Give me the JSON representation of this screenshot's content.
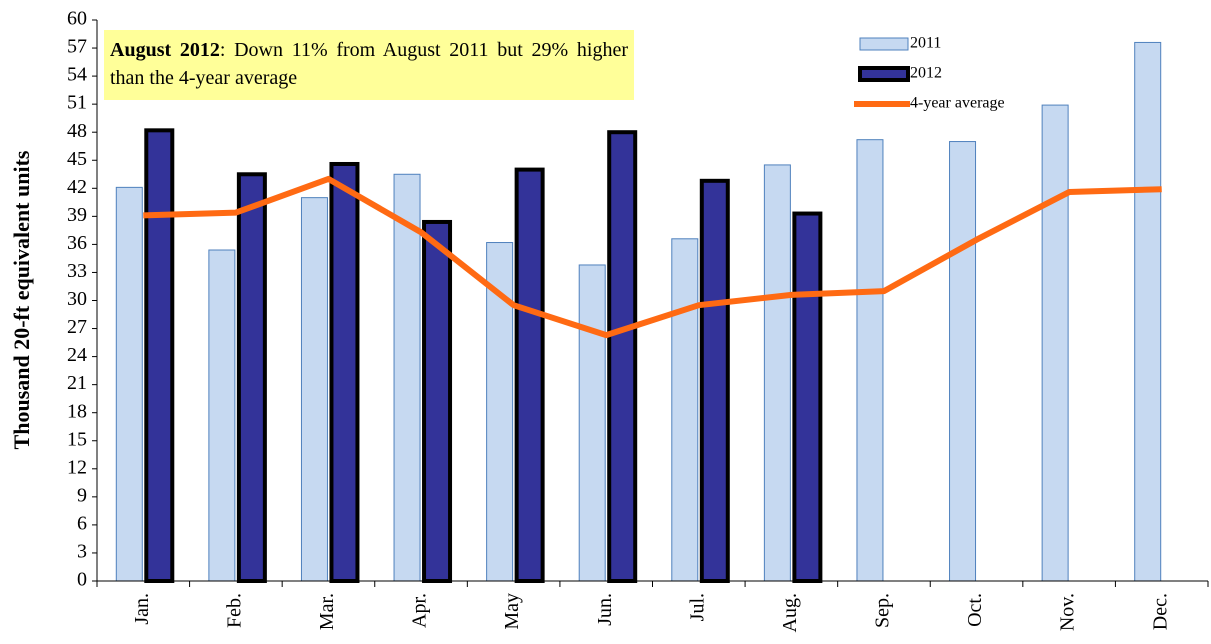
{
  "chart_data": {
    "type": "bar_line",
    "y_label": "Thousand 20-ft equivalent units",
    "annotation": {
      "bold": "August 2012",
      "text": ": Down 11% from August 2011 but 29% higher than the 4-year average"
    },
    "categories": [
      "Jan.",
      "Feb.",
      "Mar.",
      "Apr.",
      "May",
      "Jun.",
      "Jul.",
      "Aug.",
      "Sep.",
      "Oct.",
      "Nov.",
      "Dec."
    ],
    "series": [
      {
        "name": "2011",
        "type": "bar",
        "color": "#c6d9f1",
        "values": [
          42.1,
          35.4,
          41.0,
          43.5,
          36.2,
          33.8,
          36.6,
          44.5,
          47.2,
          47.0,
          50.9,
          57.6
        ]
      },
      {
        "name": "2012",
        "type": "bar",
        "color": "#333399",
        "values": [
          48.2,
          43.5,
          44.6,
          38.4,
          44.0,
          48.0,
          42.8,
          39.3,
          null,
          null,
          null,
          null
        ]
      },
      {
        "name": "4-year average",
        "type": "line",
        "color": "#ff6a13",
        "values": [
          39.1,
          39.4,
          43.0,
          37.3,
          29.5,
          26.3,
          29.5,
          30.6,
          31.0,
          36.5,
          41.6,
          41.9
        ]
      }
    ],
    "ylim": [
      0,
      60
    ],
    "yticks": [
      0,
      3,
      6,
      9,
      12,
      15,
      18,
      21,
      24,
      27,
      30,
      33,
      36,
      39,
      42,
      45,
      48,
      51,
      54,
      57,
      60
    ],
    "legend": "top-right"
  }
}
